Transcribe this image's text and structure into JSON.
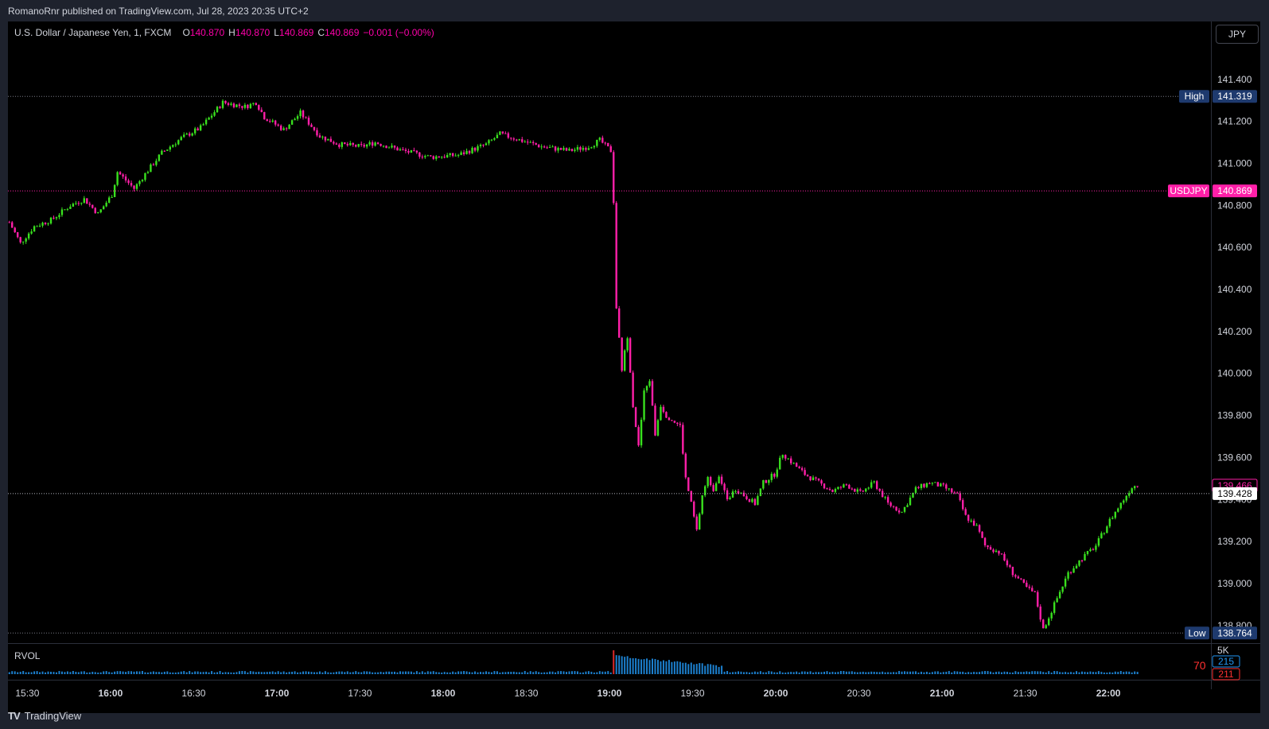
{
  "publisher": "RomanoRnr published on TradingView.com, Jul 28, 2023 20:35 UTC+2",
  "legend": {
    "symbol": "U.S. Dollar / Japanese Yen, 1, FXCM",
    "o_label": "O",
    "o": "140.870",
    "h_label": "H",
    "h": "140.870",
    "l_label": "L",
    "l": "140.869",
    "c_label": "C",
    "c": "140.869",
    "change": "−0.001 (−0.00%)"
  },
  "currency_button": "JPY",
  "indicator": {
    "name": "RVOL",
    "scale_label": "5K",
    "value_a": "215",
    "value_b": "211",
    "rvol_value": "70"
  },
  "colors": {
    "up": "#39e01e",
    "down": "#ff1fa8",
    "symbol_tag": "#ff1fa8",
    "high_low_tag": "#1e3a6e",
    "volume": "#2196f3",
    "value_a": "#2196f3",
    "value_b": "#ff3030"
  },
  "footer": {
    "logo": "TV",
    "brand": "TradingView"
  },
  "chart_data": {
    "type": "candlestick",
    "symbol": "USDJPY",
    "interval": "1",
    "y_axis": {
      "range": [
        138.75,
        141.6
      ],
      "ticks": [
        "141.400",
        "141.200",
        "141.000",
        "140.800",
        "140.600",
        "140.400",
        "140.200",
        "140.000",
        "139.800",
        "139.600",
        "139.400",
        "139.200",
        "139.000",
        "138.800"
      ]
    },
    "x_axis": {
      "range": [
        "15:23",
        "22:37"
      ],
      "ticks": [
        {
          "label": "15:30",
          "bold": false
        },
        {
          "label": "16:00",
          "bold": true
        },
        {
          "label": "16:30",
          "bold": false
        },
        {
          "label": "17:00",
          "bold": true
        },
        {
          "label": "17:30",
          "bold": false
        },
        {
          "label": "18:00",
          "bold": true
        },
        {
          "label": "18:30",
          "bold": false
        },
        {
          "label": "19:00",
          "bold": true
        },
        {
          "label": "19:30",
          "bold": false
        },
        {
          "label": "20:00",
          "bold": true
        },
        {
          "label": "20:30",
          "bold": false
        },
        {
          "label": "21:00",
          "bold": true
        },
        {
          "label": "21:30",
          "bold": false
        },
        {
          "label": "22:00",
          "bold": true
        }
      ]
    },
    "levels": [
      {
        "name": "High",
        "label": "High",
        "value": "141.319",
        "price": 141.319,
        "style": "high"
      },
      {
        "name": "USDJPY",
        "label": "USDJPY",
        "value": "140.869",
        "price": 140.869,
        "style": "symbol"
      },
      {
        "name": "price-tag",
        "label": "",
        "value": "139.466",
        "price": 139.466,
        "style": "outline"
      },
      {
        "name": "crosshair",
        "label": "",
        "value": "139.428",
        "price": 139.428,
        "style": "white"
      },
      {
        "name": "Low",
        "label": "Low",
        "value": "138.764",
        "price": 138.764,
        "style": "low"
      }
    ],
    "price_path": [
      [
        "15:23",
        140.72
      ],
      [
        "15:27",
        140.62
      ],
      [
        "15:32",
        140.7
      ],
      [
        "15:38",
        140.73
      ],
      [
        "15:45",
        140.8
      ],
      [
        "15:50",
        140.83
      ],
      [
        "15:55",
        140.76
      ],
      [
        "16:00",
        140.85
      ],
      [
        "16:02",
        140.96
      ],
      [
        "16:08",
        140.88
      ],
      [
        "16:12",
        140.95
      ],
      [
        "16:18",
        141.05
      ],
      [
        "16:25",
        141.12
      ],
      [
        "16:32",
        141.17
      ],
      [
        "16:40",
        141.29
      ],
      [
        "16:48",
        141.27
      ],
      [
        "16:52",
        141.29
      ],
      [
        "16:55",
        141.22
      ],
      [
        "17:02",
        141.16
      ],
      [
        "17:08",
        141.24
      ],
      [
        "17:15",
        141.13
      ],
      [
        "17:22",
        141.09
      ],
      [
        "17:30",
        141.08
      ],
      [
        "17:35",
        141.1
      ],
      [
        "17:45",
        141.06
      ],
      [
        "17:55",
        141.03
      ],
      [
        "18:05",
        141.04
      ],
      [
        "18:15",
        141.09
      ],
      [
        "18:20",
        141.14
      ],
      [
        "18:25",
        141.12
      ],
      [
        "18:35",
        141.08
      ],
      [
        "18:45",
        141.06
      ],
      [
        "18:52",
        141.08
      ],
      [
        "18:56",
        141.11
      ],
      [
        "19:00",
        141.06
      ],
      [
        "19:01",
        140.82
      ],
      [
        "19:02",
        140.3
      ],
      [
        "19:04",
        140.02
      ],
      [
        "19:06",
        140.18
      ],
      [
        "19:08",
        139.85
      ],
      [
        "19:10",
        139.65
      ],
      [
        "19:12",
        139.91
      ],
      [
        "19:14",
        139.97
      ],
      [
        "19:16",
        139.71
      ],
      [
        "19:18",
        139.85
      ],
      [
        "19:20",
        139.8
      ],
      [
        "19:22",
        139.78
      ],
      [
        "19:25",
        139.75
      ],
      [
        "19:27",
        139.5
      ],
      [
        "19:29",
        139.38
      ],
      [
        "19:31",
        139.25
      ],
      [
        "19:33",
        139.42
      ],
      [
        "19:35",
        139.5
      ],
      [
        "19:37",
        139.45
      ],
      [
        "19:39",
        139.52
      ],
      [
        "19:42",
        139.4
      ],
      [
        "19:45",
        139.45
      ],
      [
        "19:48",
        139.42
      ],
      [
        "19:52",
        139.38
      ],
      [
        "19:55",
        139.48
      ],
      [
        "19:59",
        139.52
      ],
      [
        "20:02",
        139.62
      ],
      [
        "20:05",
        139.58
      ],
      [
        "20:10",
        139.52
      ],
      [
        "20:15",
        139.48
      ],
      [
        "20:20",
        139.44
      ],
      [
        "20:25",
        139.47
      ],
      [
        "20:30",
        139.43
      ],
      [
        "20:35",
        139.48
      ],
      [
        "20:40",
        139.38
      ],
      [
        "20:45",
        139.34
      ],
      [
        "20:50",
        139.45
      ],
      [
        "20:55",
        139.48
      ],
      [
        "21:00",
        139.46
      ],
      [
        "21:05",
        139.42
      ],
      [
        "21:08",
        139.32
      ],
      [
        "21:12",
        139.27
      ],
      [
        "21:15",
        139.18
      ],
      [
        "21:20",
        139.15
      ],
      [
        "21:25",
        139.05
      ],
      [
        "21:30",
        138.98
      ],
      [
        "21:33",
        138.95
      ],
      [
        "21:36",
        138.78
      ],
      [
        "21:40",
        138.9
      ],
      [
        "21:45",
        139.05
      ],
      [
        "21:50",
        139.12
      ],
      [
        "21:55",
        139.18
      ],
      [
        "22:00",
        139.3
      ],
      [
        "22:05",
        139.4
      ],
      [
        "22:08",
        139.46
      ],
      [
        "22:10",
        139.47
      ]
    ],
    "volume_spike_time": "19:01"
  }
}
